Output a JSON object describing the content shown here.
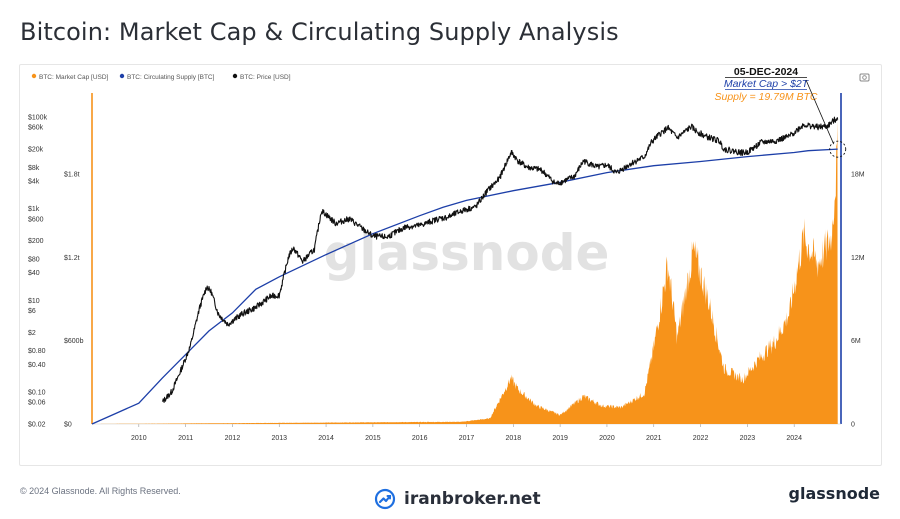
{
  "title": "Bitcoin: Market Cap & Circulating Supply Analysis",
  "colors": {
    "market_cap": "#f7931a",
    "supply": "#1d3fa8",
    "price": "#111111",
    "grid": "#f0f0f0"
  },
  "legend": [
    {
      "label": "BTC: Market Cap [USD]",
      "color": "#f7931a"
    },
    {
      "label": "BTC: Circulating Supply [BTC]",
      "color": "#1d3fa8"
    },
    {
      "label": "BTC: Price [USD]",
      "color": "#111111"
    }
  ],
  "annotation": {
    "date": "05-DEC-2024",
    "line1": "Market Cap > $2T",
    "line2": "Supply = 19.79M BTC"
  },
  "watermark": "glassnode",
  "camera_icon": "camera-icon",
  "footer": {
    "copyright": "© 2024 Glassnode. All Rights Reserved.",
    "center_brand": "iranbroker.net",
    "right_brand": "glassnode",
    "center_icon": "trend-chart-icon"
  },
  "chart_data": {
    "type": "line",
    "x_axis": {
      "tick_labels": [
        "2010",
        "2011",
        "2012",
        "2013",
        "2014",
        "2015",
        "2016",
        "2017",
        "2018",
        "2019",
        "2020",
        "2021",
        "2022",
        "2023",
        "2024"
      ],
      "range": [
        2009.0,
        2025.0
      ]
    },
    "price_axis": {
      "label_side": "left",
      "scale": "log",
      "tick_labels": [
        "$100k",
        "$60k",
        "$20k",
        "$8k",
        "$4k",
        "$1k",
        "$600",
        "$200",
        "$80",
        "$40",
        "$10",
        "$6",
        "$2",
        "$0.80",
        "$0.40",
        "$0.10",
        "$0.06",
        "$0.02"
      ]
    },
    "market_cap_axis": {
      "label_side": "left-inner",
      "tick_labels": [
        "$1.8t",
        "$1.2t",
        "$600b",
        "$0"
      ],
      "range": [
        0,
        2200000000000
      ]
    },
    "supply_axis": {
      "label_side": "right",
      "tick_labels": [
        "18M",
        "12M",
        "6M",
        "0"
      ],
      "range": [
        0,
        21500000
      ]
    },
    "series": [
      {
        "name": "BTC: Price [USD]",
        "x": [
          2010.5,
          2010.7,
          2010.9,
          2011.1,
          2011.3,
          2011.45,
          2011.55,
          2011.7,
          2011.9,
          2012.2,
          2012.5,
          2012.8,
          2013.0,
          2013.2,
          2013.3,
          2013.5,
          2013.75,
          2013.9,
          2014.0,
          2014.2,
          2014.5,
          2014.8,
          2015.0,
          2015.3,
          2015.7,
          2016.0,
          2016.4,
          2016.6,
          2016.9,
          2017.2,
          2017.45,
          2017.7,
          2017.85,
          2017.96,
          2018.1,
          2018.3,
          2018.6,
          2018.9,
          2019.0,
          2019.3,
          2019.5,
          2019.8,
          2020.0,
          2020.2,
          2020.5,
          2020.8,
          2020.95,
          2021.1,
          2021.3,
          2021.5,
          2021.8,
          2021.9,
          2022.1,
          2022.4,
          2022.5,
          2022.9,
          2023.0,
          2023.3,
          2023.6,
          2023.9,
          2024.2,
          2024.5,
          2024.7,
          2024.93
        ],
        "y": [
          0.06,
          0.1,
          0.3,
          1,
          7,
          20,
          15,
          5,
          3,
          5,
          7,
          12,
          13,
          90,
          140,
          70,
          130,
          900,
          750,
          480,
          600,
          350,
          250,
          240,
          400,
          430,
          600,
          650,
          900,
          1100,
          2500,
          4500,
          10000,
          17000,
          11000,
          8000,
          7000,
          3500,
          3700,
          5000,
          11000,
          8000,
          9000,
          6000,
          9500,
          13500,
          28000,
          40000,
          58000,
          35000,
          62000,
          50000,
          38000,
          30000,
          20000,
          16500,
          17000,
          28000,
          30000,
          38000,
          68000,
          60000,
          62000,
          98000
        ]
      },
      {
        "name": "BTC: Circulating Supply [BTC]",
        "x": [
          2009.0,
          2009.5,
          2010.0,
          2010.5,
          2011.0,
          2011.5,
          2012.0,
          2012.5,
          2013.0,
          2014.0,
          2015.0,
          2016.0,
          2016.5,
          2017.0,
          2018.0,
          2019.0,
          2020.0,
          2020.4,
          2021.0,
          2022.0,
          2023.0,
          2024.0,
          2024.3,
          2024.93
        ],
        "y": [
          0,
          0.75,
          1.5,
          3.3,
          5.0,
          6.7,
          8.0,
          9.7,
          10.6,
          12.2,
          13.7,
          15.0,
          15.6,
          16.1,
          16.8,
          17.4,
          18.1,
          18.3,
          18.6,
          18.9,
          19.25,
          19.55,
          19.68,
          19.79
        ],
        "unit": "M BTC"
      },
      {
        "name": "BTC: Market Cap [USD]",
        "x": [
          2009.0,
          2016.9,
          2017.5,
          2017.95,
          2018.1,
          2018.5,
          2019.0,
          2019.5,
          2019.9,
          2020.3,
          2020.8,
          2021.0,
          2021.3,
          2021.5,
          2021.85,
          2022.2,
          2022.5,
          2022.9,
          2023.2,
          2023.6,
          2023.9,
          2024.2,
          2024.5,
          2024.8,
          2024.93
        ],
        "y": [
          0,
          0.016,
          0.04,
          0.33,
          0.25,
          0.13,
          0.065,
          0.2,
          0.13,
          0.12,
          0.22,
          0.55,
          1.15,
          0.62,
          1.25,
          0.85,
          0.4,
          0.32,
          0.45,
          0.6,
          0.8,
          1.35,
          1.15,
          1.35,
          2.0
        ],
        "unit": "trillion USD"
      }
    ],
    "grid": true,
    "legend_position": "top-left"
  }
}
